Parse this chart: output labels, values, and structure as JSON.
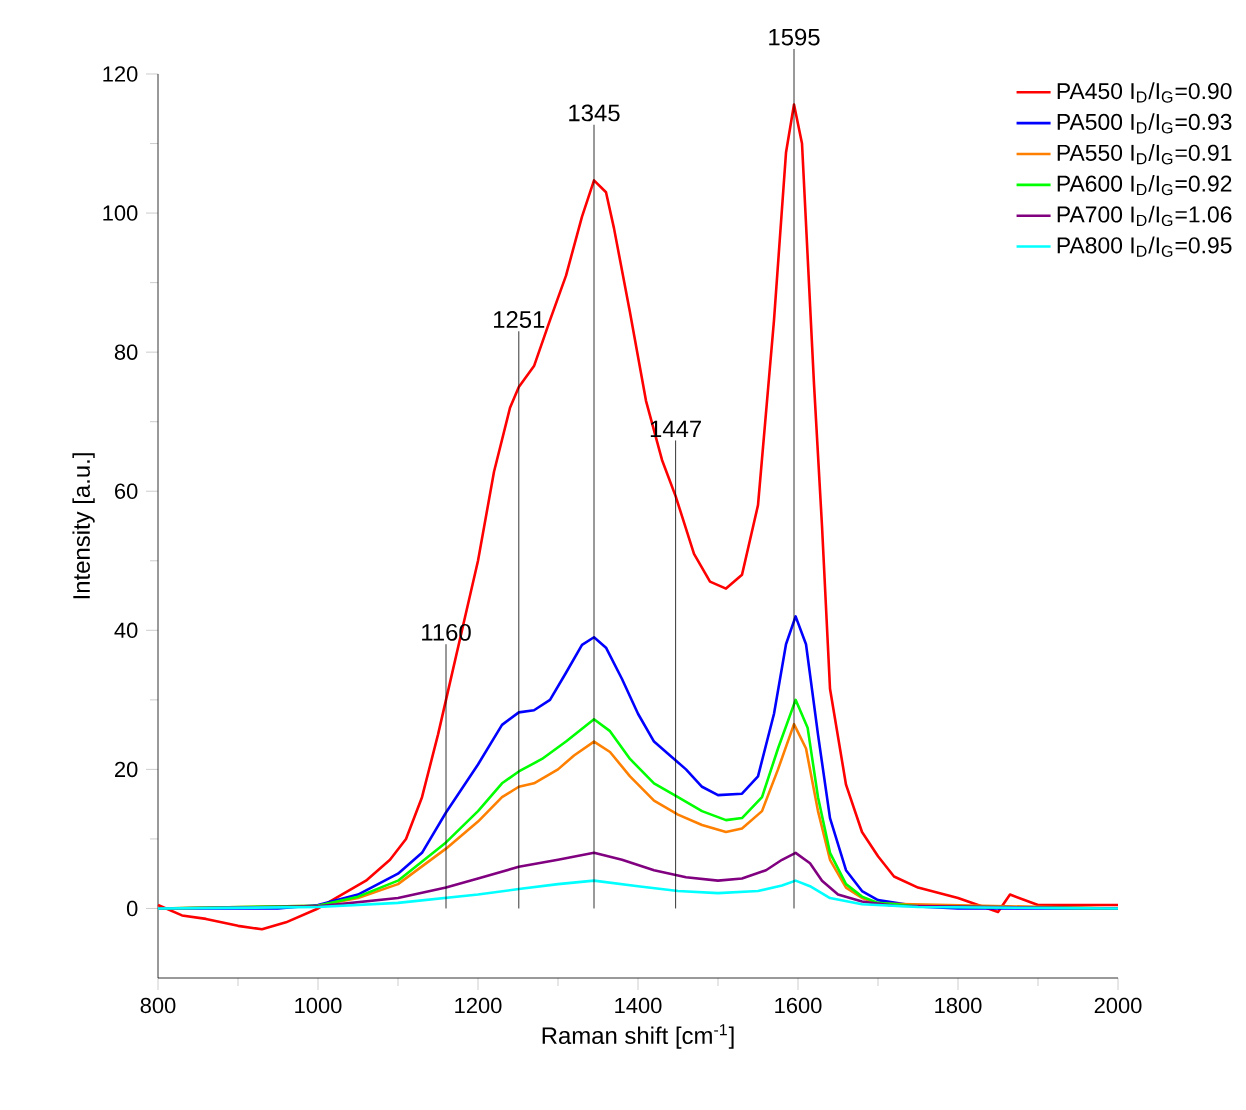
{
  "chart_data": {
    "type": "line",
    "xlabel": "Raman shift [cm$^{-1}$]",
    "ylabel": "Intensity  [a.u.]",
    "xlim": [
      800,
      2000
    ],
    "ylim": [
      -10,
      120
    ],
    "xticks": [
      800,
      1000,
      1200,
      1400,
      1600,
      1800,
      2000
    ],
    "yticks": [
      0,
      20,
      40,
      60,
      80,
      100,
      120
    ],
    "legend": "top right",
    "grid": false,
    "marker": "none",
    "line_style": "solid",
    "ref_lines": [
      {
        "axis": "x",
        "value": 1160,
        "label": "1160",
        "color": "#000000"
      },
      {
        "axis": "x",
        "value": 1251,
        "label": "1251",
        "color": "#000000"
      },
      {
        "axis": "x",
        "value": 1345,
        "label": "1345",
        "color": "#000000"
      },
      {
        "axis": "x",
        "value": 1447,
        "label": "1447",
        "color": "#000000"
      },
      {
        "axis": "x",
        "value": 1595,
        "label": "1595",
        "color": "#000000"
      }
    ],
    "series": [
      {
        "name": "PA450   I$_{D}$/I$_{G}$=0.90",
        "color": "#ff0000",
        "x": [
          800,
          830,
          860,
          900,
          930,
          960,
          1000,
          1030,
          1060,
          1090,
          1110,
          1130,
          1150,
          1160,
          1180,
          1200,
          1220,
          1240,
          1251,
          1270,
          1290,
          1310,
          1330,
          1345,
          1360,
          1370,
          1390,
          1410,
          1430,
          1447,
          1470,
          1490,
          1510,
          1530,
          1550,
          1570,
          1585,
          1595,
          1605,
          1620,
          1630,
          1640,
          1660,
          1680,
          1700,
          1720,
          1750,
          1800,
          1850,
          1865,
          1900,
          1950,
          2000
        ],
        "values": [
          0.5,
          -1,
          -1.5,
          -2.5,
          -3,
          -2,
          0,
          2,
          4,
          7,
          10,
          16,
          25,
          30,
          40,
          50,
          62.8,
          72,
          75,
          78,
          84.6,
          91,
          99.5,
          104.7,
          103,
          97.8,
          85.7,
          73,
          64.5,
          59.3,
          51,
          47,
          46,
          48,
          58,
          84.6,
          108.7,
          115.6,
          110,
          75.4,
          55,
          31.6,
          17.8,
          11,
          7.5,
          4.6,
          3,
          1.5,
          -0.5,
          2,
          0.5,
          0.5,
          0.5
        ]
      },
      {
        "name": "PA500   I$_{D}$/I$_{G}$=0.93",
        "color": "#0000ff",
        "x": [
          800,
          950,
          1000,
          1050,
          1100,
          1130,
          1160,
          1200,
          1230,
          1251,
          1270,
          1290,
          1310,
          1330,
          1345,
          1360,
          1380,
          1400,
          1420,
          1440,
          1460,
          1480,
          1500,
          1530,
          1550,
          1570,
          1585,
          1597,
          1610,
          1625,
          1640,
          1660,
          1680,
          1700,
          1750,
          1800,
          2000
        ],
        "values": [
          0,
          0,
          0.5,
          2,
          5,
          8,
          13.8,
          20.7,
          26.4,
          28.2,
          28.5,
          30,
          33.9,
          37.9,
          39,
          37.5,
          33,
          28,
          24,
          22,
          20,
          17.5,
          16.3,
          16.5,
          19,
          28,
          38,
          42,
          38,
          25,
          13,
          5.5,
          2.5,
          1.2,
          0.3,
          0,
          0
        ]
      },
      {
        "name": "PA550   I$_{D}$/I$_{G}$=0.91",
        "color": "#ff8000",
        "x": [
          800,
          1000,
          1050,
          1100,
          1160,
          1200,
          1230,
          1251,
          1270,
          1300,
          1320,
          1345,
          1365,
          1390,
          1420,
          1450,
          1480,
          1510,
          1530,
          1555,
          1575,
          1595,
          1610,
          1625,
          1640,
          1660,
          1680,
          1700,
          2000
        ],
        "values": [
          0,
          0.4,
          1.5,
          3.5,
          8.6,
          12.5,
          16,
          17.5,
          18,
          20,
          22,
          24,
          22.5,
          19,
          15.5,
          13.5,
          12,
          11,
          11.5,
          14,
          20,
          26.5,
          23,
          14,
          7,
          3,
          1.5,
          0.7,
          0
        ]
      },
      {
        "name": "PA600   I$_{D}$/I$_{G}$=0.92",
        "color": "#00ff00",
        "x": [
          800,
          1000,
          1050,
          1100,
          1160,
          1200,
          1230,
          1251,
          1280,
          1310,
          1345,
          1365,
          1390,
          1420,
          1450,
          1480,
          1510,
          1530,
          1555,
          1575,
          1597,
          1612,
          1625,
          1640,
          1660,
          1680,
          1700,
          1750,
          2000
        ],
        "values": [
          0,
          0.4,
          1.7,
          4,
          9.5,
          14,
          18,
          19.7,
          21.5,
          24,
          27.2,
          25.5,
          21.5,
          18,
          16,
          14,
          12.7,
          13,
          16,
          23,
          30,
          26,
          16,
          8,
          3.5,
          1.7,
          0.8,
          0.3,
          0
        ]
      },
      {
        "name": "PA700   I$_{D}$/I$_{G}$=1.06",
        "color": "#800080",
        "x": [
          800,
          1000,
          1100,
          1160,
          1200,
          1251,
          1300,
          1345,
          1380,
          1420,
          1460,
          1500,
          1530,
          1560,
          1580,
          1597,
          1615,
          1630,
          1650,
          1680,
          1720,
          2000
        ],
        "values": [
          0,
          0.3,
          1.5,
          3,
          4.3,
          6,
          7,
          8,
          7,
          5.5,
          4.5,
          4,
          4.3,
          5.5,
          7,
          8,
          6.5,
          4,
          2,
          1,
          0.4,
          0
        ]
      },
      {
        "name": "PA800   I$_{D}$/I$_{G}$=0.95",
        "color": "#00ffff",
        "x": [
          800,
          1000,
          1100,
          1200,
          1251,
          1300,
          1345,
          1400,
          1450,
          1500,
          1550,
          1580,
          1597,
          1615,
          1640,
          1680,
          1750,
          2000
        ],
        "values": [
          0,
          0.2,
          0.8,
          2,
          2.8,
          3.5,
          4,
          3.2,
          2.5,
          2.2,
          2.5,
          3.3,
          4,
          3.2,
          1.5,
          0.6,
          0.2,
          0
        ]
      }
    ]
  }
}
